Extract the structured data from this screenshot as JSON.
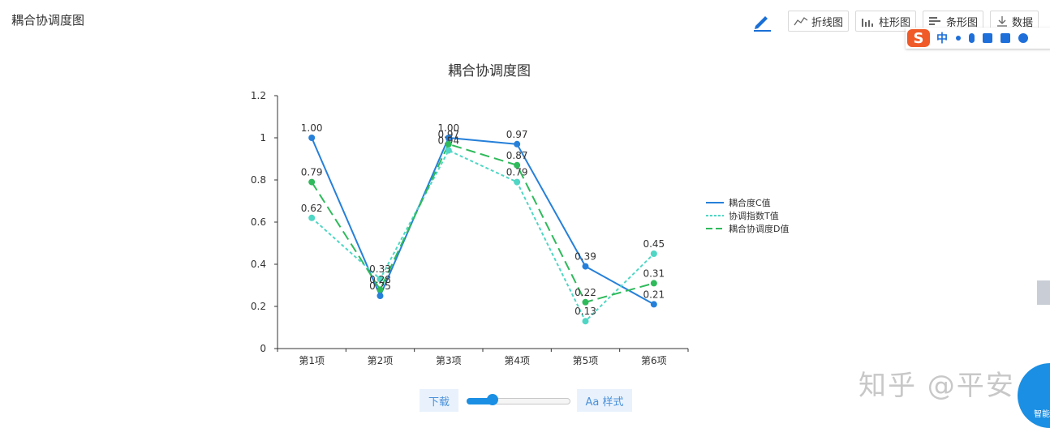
{
  "page": {
    "title": "耦合协调度图"
  },
  "toolbar": {
    "edit_icon": "pencil-icon",
    "buttons": [
      {
        "label": "折线图",
        "icon": "line-chart-icon"
      },
      {
        "label": "柱形图",
        "icon": "bar-chart-icon"
      },
      {
        "label": "条形图",
        "icon": "horizontal-bar-icon"
      },
      {
        "label": "数据",
        "icon": "download-icon"
      }
    ]
  },
  "ime": {
    "logo": "S",
    "mode": "中"
  },
  "bottom": {
    "download_label": "下载",
    "style_label": "Aa 样式",
    "slider_value": 0.25
  },
  "watermark": "知乎 @平安",
  "help_label": "智能",
  "colors": {
    "c": "#2680d9",
    "t": "#4fd6c4",
    "d": "#2fba5b"
  },
  "chart_data": {
    "type": "line",
    "title": "耦合协调度图",
    "categories": [
      "第1项",
      "第2项",
      "第3项",
      "第4项",
      "第5项",
      "第6项"
    ],
    "ylim": [
      0,
      1.2
    ],
    "yticks": [
      "0",
      "0.2",
      "0.4",
      "0.6",
      "0.8",
      "1",
      "1.2"
    ],
    "grid": false,
    "legend_position": "right",
    "series": [
      {
        "name": "耦合度C值",
        "values": [
          1.0,
          0.25,
          1.0,
          0.97,
          0.39,
          0.21
        ],
        "color": "#2680d9",
        "dash": "solid"
      },
      {
        "name": "协调指数T值",
        "values": [
          0.62,
          0.33,
          0.94,
          0.79,
          0.13,
          0.45
        ],
        "color": "#4fd6c4",
        "dash": "short-dash"
      },
      {
        "name": "耦合协调度D值",
        "values": [
          0.79,
          0.28,
          0.97,
          0.87,
          0.22,
          0.31
        ],
        "color": "#2fba5b",
        "dash": "long-dash"
      }
    ]
  }
}
